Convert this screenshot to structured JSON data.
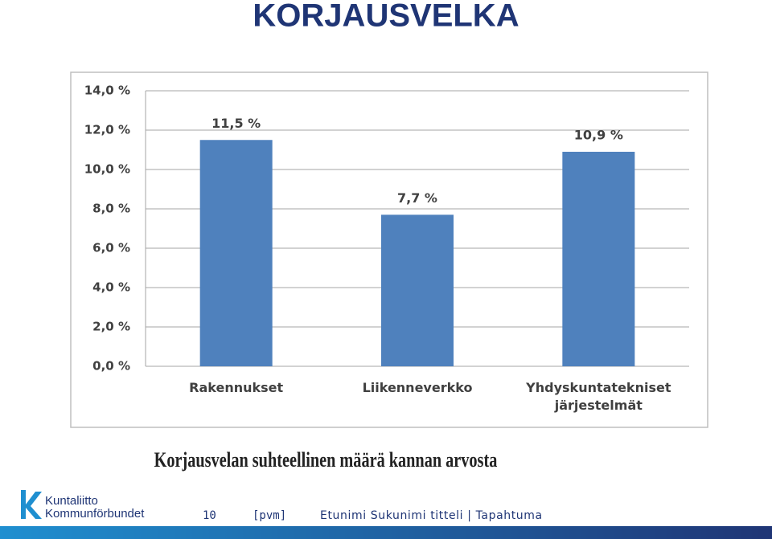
{
  "title": "KORJAUSVELKA",
  "chart_data": {
    "type": "bar",
    "categories": [
      "Rakennukset",
      "Liikenneverkko",
      "Yhdyskuntatekniset järjestelmät"
    ],
    "values": [
      11.5,
      7.7,
      10.9
    ],
    "value_labels": [
      "11,5 %",
      "7,7 %",
      "10,9 %"
    ],
    "color": "#4f81bd",
    "ylim": [
      0,
      14
    ],
    "yticks": [
      {
        "value": 0,
        "label": "0,0 %"
      },
      {
        "value": 2,
        "label": "2,0 %"
      },
      {
        "value": 4,
        "label": "4,0 %"
      },
      {
        "value": 6,
        "label": "6,0 %"
      },
      {
        "value": 8,
        "label": "8,0 %"
      },
      {
        "value": 10,
        "label": "10,0 %"
      },
      {
        "value": 12,
        "label": "12,0 %"
      },
      {
        "value": 14,
        "label": "14,0 %"
      }
    ],
    "grid": true
  },
  "caption": "Korjausvelan suhteellinen määrä kannan arvosta",
  "footer": {
    "logo_line1": "Kuntaliitto",
    "logo_line2": "Kommunförbundet",
    "page": "10",
    "date": "[pvm]",
    "presenter": "Etunimi Sukunimi titteli | Tapahtuma"
  }
}
